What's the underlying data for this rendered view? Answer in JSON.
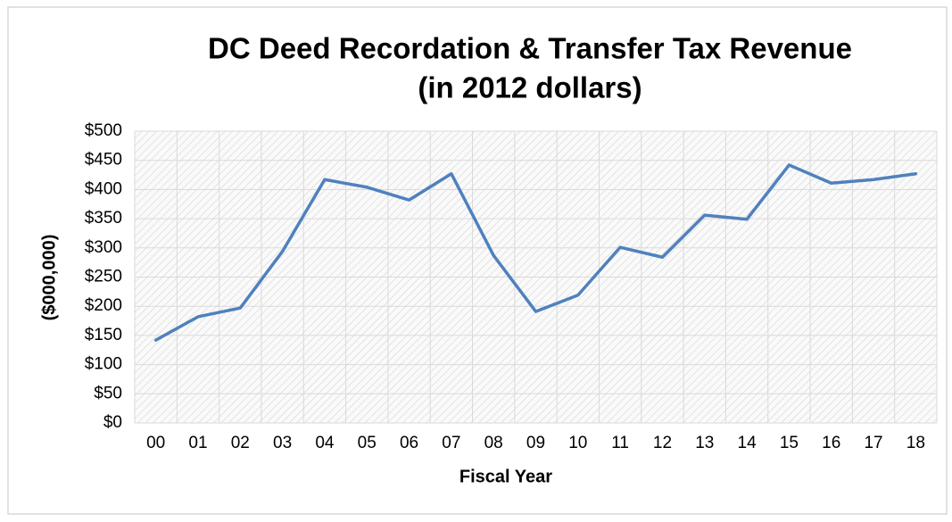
{
  "chart_data": {
    "type": "line",
    "title": [
      "DC Deed Recordation & Transfer Tax Revenue",
      "(in 2012 dollars)"
    ],
    "x_label": "Fiscal Year",
    "y_label": "($000,000)",
    "categories": [
      "00",
      "01",
      "02",
      "03",
      "04",
      "05",
      "06",
      "07",
      "08",
      "09",
      "10",
      "11",
      "12",
      "13",
      "14",
      "15",
      "16",
      "17",
      "18"
    ],
    "series": [
      {
        "name": "Revenue",
        "color": "#4f81bd",
        "values": [
          142,
          182,
          197,
          294,
          417,
          404,
          382,
          427,
          287,
          191,
          219,
          301,
          284,
          356,
          349,
          442,
          411,
          417,
          427
        ]
      }
    ],
    "ylim": [
      0,
      500
    ],
    "yticks": [
      {
        "value": 0,
        "label": "$0"
      },
      {
        "value": 50,
        "label": "$50"
      },
      {
        "value": 100,
        "label": "$100"
      },
      {
        "value": 150,
        "label": "$150"
      },
      {
        "value": 200,
        "label": "$200"
      },
      {
        "value": 250,
        "label": "$250"
      },
      {
        "value": 300,
        "label": "$300"
      },
      {
        "value": 350,
        "label": "$350"
      },
      {
        "value": 400,
        "label": "$400"
      },
      {
        "value": 450,
        "label": "$450"
      },
      {
        "value": 500,
        "label": "$500"
      }
    ],
    "grid": true
  }
}
